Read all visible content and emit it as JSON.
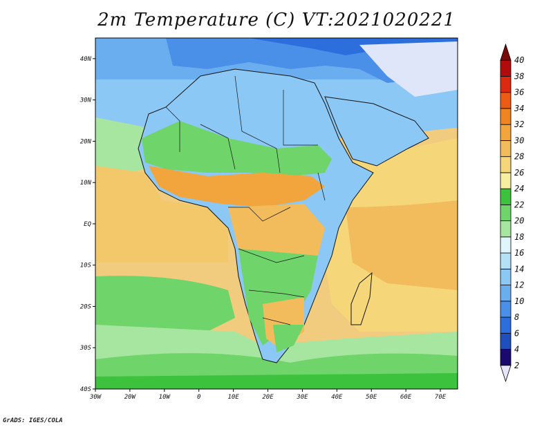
{
  "title": "2m Temperature (C) VT:2021020221",
  "credit": "GrADS: IGES/COLA",
  "map": {
    "lon_labels": [
      "30W",
      "20W",
      "10W",
      "0",
      "10E",
      "20E",
      "30E",
      "40E",
      "50E",
      "60E",
      "70E"
    ],
    "lat_labels": [
      "40N",
      "30N",
      "20N",
      "10N",
      "EQ",
      "10S",
      "20S",
      "30S",
      "40S"
    ],
    "lon_range": [
      -30,
      75
    ],
    "lat_range": [
      -40,
      45
    ]
  },
  "colorbar": {
    "labels": [
      "2",
      "4",
      "6",
      "8",
      "10",
      "12",
      "14",
      "16",
      "18",
      "20",
      "22",
      "24",
      "26",
      "28",
      "30",
      "32",
      "34",
      "36",
      "38",
      "40"
    ],
    "colors": [
      "#e6e6fa",
      "#1a0a6e",
      "#1f4fbf",
      "#2c6fdc",
      "#4a90e8",
      "#6aaef0",
      "#8cc8f5",
      "#b4e0f8",
      "#e0f5fb",
      "#a6e6a0",
      "#6fd46a",
      "#3cc23c",
      "#f6f0a0",
      "#f5d77a",
      "#f2bc5c",
      "#f2a53c",
      "#f08420",
      "#ec5c14",
      "#dc2a10",
      "#b00c0c",
      "#7a0a0a"
    ]
  }
}
